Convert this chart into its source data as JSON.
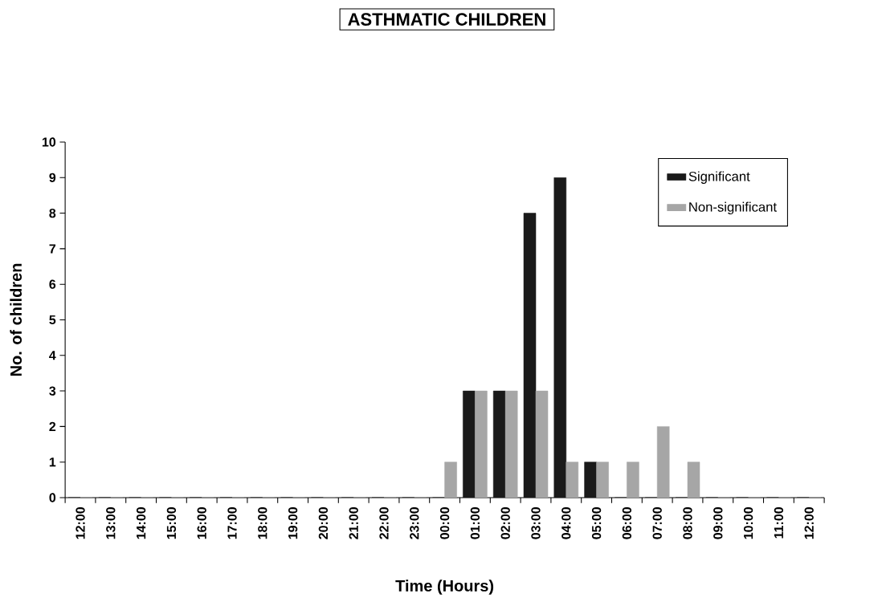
{
  "chart_data": {
    "type": "bar",
    "title": "ASTHMATIC CHILDREN",
    "xlabel": "Time (Hours)",
    "ylabel": "No. of children",
    "categories": [
      "12:00",
      "13:00",
      "14:00",
      "15:00",
      "16:00",
      "17:00",
      "18:00",
      "19:00",
      "20:00",
      "21:00",
      "22:00",
      "23:00",
      "00:00",
      "01:00",
      "02:00",
      "03:00",
      "04:00",
      "05:00",
      "06:00",
      "07:00",
      "08:00",
      "09:00",
      "10:00",
      "11:00",
      "12:00"
    ],
    "series": [
      {
        "name": "Significant",
        "color": "#1a1a1a",
        "values": [
          0,
          0,
          0,
          0,
          0,
          0,
          0,
          0,
          0,
          0,
          0,
          0,
          0,
          3,
          3,
          8,
          9,
          1,
          0,
          0,
          0,
          0,
          0,
          0,
          0
        ]
      },
      {
        "name": "Non-significant",
        "color": "#a6a6a6",
        "values": [
          0,
          0,
          0,
          0,
          0,
          0,
          0,
          0,
          0,
          0,
          0,
          0,
          1,
          3,
          3,
          3,
          1,
          1,
          1,
          2,
          1,
          0,
          0,
          0,
          0
        ]
      }
    ],
    "ylim": [
      0,
      10
    ],
    "yticks": [
      0,
      1,
      2,
      3,
      4,
      5,
      6,
      7,
      8,
      9,
      10
    ],
    "legend": "top right"
  }
}
